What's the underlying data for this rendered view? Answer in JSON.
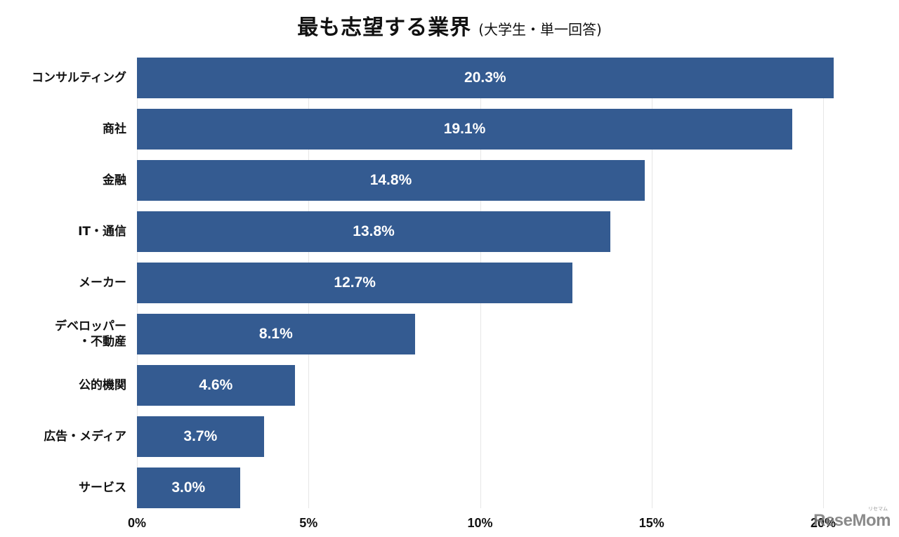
{
  "title": {
    "main": "最も志望する業界",
    "sub": "(大学生・単一回答)"
  },
  "watermark": {
    "text": "ReseMom",
    "kana": "リセマム"
  },
  "colors": {
    "bar": "#345b91",
    "grid": "#e6e6e6",
    "label": "#ffffff"
  },
  "axis": {
    "ticks": [
      "0%",
      "5%",
      "10%",
      "15%",
      "20%"
    ]
  },
  "categories": [
    {
      "label_line1": "コンサルティング",
      "label_line2": "",
      "value_label": "20.3%"
    },
    {
      "label_line1": "商社",
      "label_line2": "",
      "value_label": "19.1%"
    },
    {
      "label_line1": "金融",
      "label_line2": "",
      "value_label": "14.8%"
    },
    {
      "label_line1": "IT・通信",
      "label_line2": "",
      "value_label": "13.8%"
    },
    {
      "label_line1": "メーカー",
      "label_line2": "",
      "value_label": "12.7%"
    },
    {
      "label_line1": "デベロッパー",
      "label_line2": "・不動産",
      "value_label": "8.1%"
    },
    {
      "label_line1": "公的機関",
      "label_line2": "",
      "value_label": "4.6%"
    },
    {
      "label_line1": "広告・メディア",
      "label_line2": "",
      "value_label": "3.7%"
    },
    {
      "label_line1": "サービス",
      "label_line2": "",
      "value_label": "3.0%"
    }
  ],
  "chart_data": {
    "type": "bar",
    "orientation": "horizontal",
    "title": "最も志望する業界 (大学生・単一回答)",
    "categories": [
      "コンサルティング",
      "商社",
      "金融",
      "IT・通信",
      "メーカー",
      "デベロッパー・不動産",
      "公的機関",
      "広告・メディア",
      "サービス"
    ],
    "values": [
      20.3,
      19.1,
      14.8,
      13.8,
      12.7,
      8.1,
      4.6,
      3.7,
      3.0
    ],
    "unit": "%",
    "xlabel": "",
    "ylabel": "",
    "xlim": [
      0,
      20
    ],
    "xticks": [
      "0%",
      "5%",
      "10%",
      "15%",
      "20%"
    ],
    "grid": "vertical",
    "legend": "none",
    "data_labels": true
  }
}
